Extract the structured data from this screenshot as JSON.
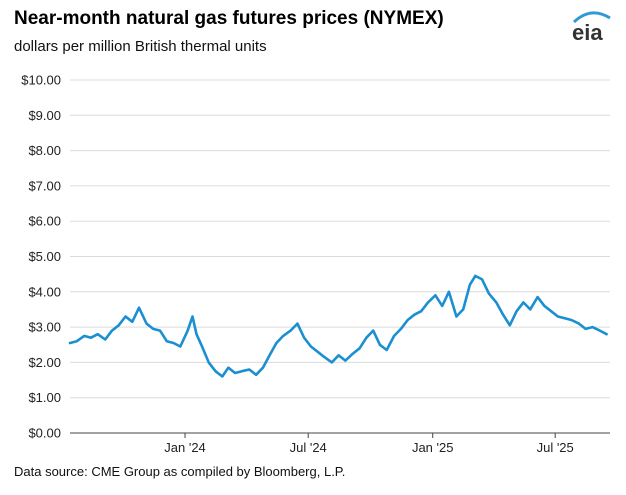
{
  "header": {
    "title": "Near-month natural gas futures prices (NYMEX)",
    "subtitle": "dollars per million British thermal units",
    "logo_text": "eia"
  },
  "footer": {
    "source": "Data source: CME Group as compiled by Bloomberg, L.P."
  },
  "colors": {
    "line": "#1a8fd1",
    "grid": "#dcdcdc",
    "axis": "#444444",
    "logo_arc": "#2e9bd6"
  },
  "chart_data": {
    "type": "line",
    "title": "Near-month natural gas futures prices (NYMEX)",
    "ylabel": "dollars per million British thermal units",
    "ylim": [
      0,
      10
    ],
    "yticks": [
      "$0.00",
      "$1.00",
      "$2.00",
      "$3.00",
      "$4.00",
      "$5.00",
      "$6.00",
      "$7.00",
      "$8.00",
      "$9.00",
      "$10.00"
    ],
    "xticks": [
      {
        "label": "Jan '24",
        "date": "2024-01-01"
      },
      {
        "label": "Jul '24",
        "date": "2024-07-01"
      },
      {
        "label": "Jan '25",
        "date": "2025-01-01"
      },
      {
        "label": "Jul '25",
        "date": "2025-07-01"
      }
    ],
    "xlim": [
      "2023-07-15",
      "2025-09-20"
    ],
    "grid": true,
    "series": [
      {
        "x": [
          "2023-07-15",
          "2023-07-25",
          "2023-08-05",
          "2023-08-15",
          "2023-08-25",
          "2023-09-05",
          "2023-09-15",
          "2023-09-25",
          "2023-10-05",
          "2023-10-15",
          "2023-10-25",
          "2023-11-05",
          "2023-11-15",
          "2023-11-25",
          "2023-12-05",
          "2023-12-15",
          "2023-12-25",
          "2024-01-05",
          "2024-01-12",
          "2024-01-18",
          "2024-01-25",
          "2024-02-05",
          "2024-02-15",
          "2024-02-25",
          "2024-03-05",
          "2024-03-15",
          "2024-03-25",
          "2024-04-05",
          "2024-04-15",
          "2024-04-25",
          "2024-05-05",
          "2024-05-15",
          "2024-05-25",
          "2024-06-05",
          "2024-06-15",
          "2024-06-25",
          "2024-07-05",
          "2024-07-15",
          "2024-07-25",
          "2024-08-05",
          "2024-08-15",
          "2024-08-25",
          "2024-09-05",
          "2024-09-15",
          "2024-09-25",
          "2024-10-05",
          "2024-10-15",
          "2024-10-25",
          "2024-11-05",
          "2024-11-15",
          "2024-11-25",
          "2024-12-05",
          "2024-12-15",
          "2024-12-25",
          "2025-01-05",
          "2025-01-15",
          "2025-01-25",
          "2025-02-05",
          "2025-02-15",
          "2025-02-25",
          "2025-03-05",
          "2025-03-15",
          "2025-03-25",
          "2025-04-05",
          "2025-04-15",
          "2025-04-25",
          "2025-05-05",
          "2025-05-15",
          "2025-05-25",
          "2025-06-05",
          "2025-06-15",
          "2025-06-25",
          "2025-07-05",
          "2025-07-15",
          "2025-07-25",
          "2025-08-05",
          "2025-08-15",
          "2025-08-25",
          "2025-09-05",
          "2025-09-15"
        ],
        "values": [
          2.55,
          2.6,
          2.75,
          2.7,
          2.8,
          2.65,
          2.9,
          3.05,
          3.3,
          3.15,
          3.55,
          3.1,
          2.95,
          2.9,
          2.6,
          2.55,
          2.45,
          2.9,
          3.3,
          2.8,
          2.5,
          2.0,
          1.75,
          1.6,
          1.85,
          1.7,
          1.75,
          1.8,
          1.65,
          1.85,
          2.2,
          2.55,
          2.75,
          2.9,
          3.1,
          2.7,
          2.45,
          2.3,
          2.15,
          2.0,
          2.2,
          2.05,
          2.25,
          2.4,
          2.7,
          2.9,
          2.5,
          2.35,
          2.75,
          2.95,
          3.2,
          3.35,
          3.45,
          3.7,
          3.9,
          3.6,
          4.0,
          3.3,
          3.5,
          4.2,
          4.45,
          4.35,
          3.95,
          3.7,
          3.35,
          3.05,
          3.45,
          3.7,
          3.5,
          3.85,
          3.6,
          3.45,
          3.3,
          3.25,
          3.2,
          3.1,
          2.95,
          3.0,
          2.9,
          2.8
        ]
      }
    ]
  }
}
